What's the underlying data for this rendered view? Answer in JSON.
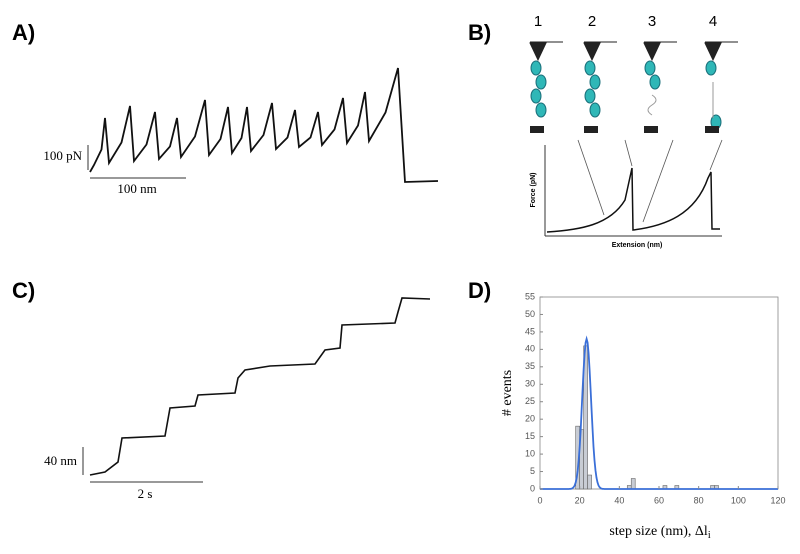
{
  "panels": {
    "a": {
      "label": "A)",
      "scale_y": "100 pN",
      "scale_x": "100 nm"
    },
    "b": {
      "label": "B)",
      "states": [
        "1",
        "2",
        "3",
        "4"
      ],
      "ylabel": "Force (pN)",
      "xlabel": "Extension (nm)"
    },
    "c": {
      "label": "C)",
      "scale_y": "40 nm",
      "scale_x": "2 s"
    },
    "d": {
      "label": "D)"
    }
  },
  "chart_data": {
    "type": "histogram",
    "ylabel": "# events",
    "xlabel": "step size (nm), Δl",
    "xlabel_subscript": "i",
    "bins": [
      18,
      20,
      22,
      24,
      26,
      28,
      30,
      32,
      34,
      36,
      38,
      40,
      42,
      44,
      46,
      48,
      50,
      52,
      54,
      56,
      58,
      60,
      62,
      64,
      66,
      68,
      70,
      72,
      74,
      76,
      78,
      80,
      82,
      84,
      86,
      88,
      90,
      92
    ],
    "counts": [
      18,
      17,
      41,
      4,
      0,
      0,
      0,
      0,
      0,
      0,
      0,
      0,
      0,
      1,
      3,
      0,
      0,
      0,
      0,
      0,
      0,
      0,
      1,
      0,
      0,
      1,
      0,
      0,
      0,
      0,
      0,
      0,
      0,
      0,
      1,
      1,
      0
    ],
    "color": "#c8ccd4",
    "xlim": [
      0,
      120
    ],
    "xticks": [
      0,
      20,
      40,
      60,
      80,
      100,
      120
    ],
    "ylim": [
      0,
      55
    ],
    "yticks": [
      0,
      5,
      10,
      15,
      20,
      25,
      30,
      35,
      40,
      45,
      50,
      55
    ]
  }
}
